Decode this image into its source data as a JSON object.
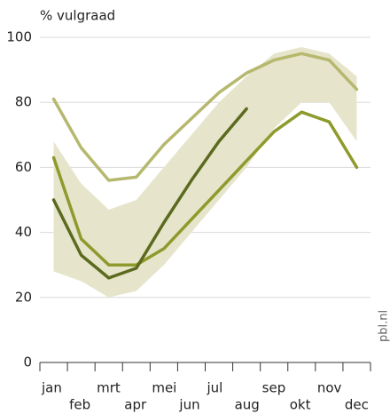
{
  "chart_data": {
    "type": "line",
    "ylabel": "% vulgraad",
    "source": "pbl.nl",
    "categories": [
      "jan",
      "feb",
      "mrt",
      "apr",
      "mei",
      "jun",
      "jul",
      "aug",
      "sep",
      "okt",
      "nov",
      "dec"
    ],
    "band": {
      "color": "#e6e5cc",
      "upper": [
        68,
        55,
        47,
        50,
        60,
        70,
        80,
        88,
        95,
        97,
        95,
        88
      ],
      "lower": [
        28,
        25,
        20,
        22,
        30,
        40,
        50,
        60,
        72,
        80,
        80,
        68
      ]
    },
    "series": [
      {
        "color": "#b6b86e",
        "values": [
          81,
          66,
          56,
          57,
          67,
          75,
          83,
          89,
          93,
          95,
          93,
          84
        ]
      },
      {
        "color": "#8e9a2c",
        "values": [
          63,
          38,
          30,
          30,
          35,
          44,
          53,
          62,
          71,
          77,
          74,
          60
        ]
      },
      {
        "color": "#5c6a1e",
        "values": [
          50,
          33,
          26,
          29,
          43,
          56,
          68,
          78,
          null,
          null,
          null,
          null
        ]
      }
    ],
    "ylim": [
      0,
      100
    ],
    "yticks": [
      0,
      20,
      40,
      60,
      80,
      100
    ],
    "grid": true
  }
}
